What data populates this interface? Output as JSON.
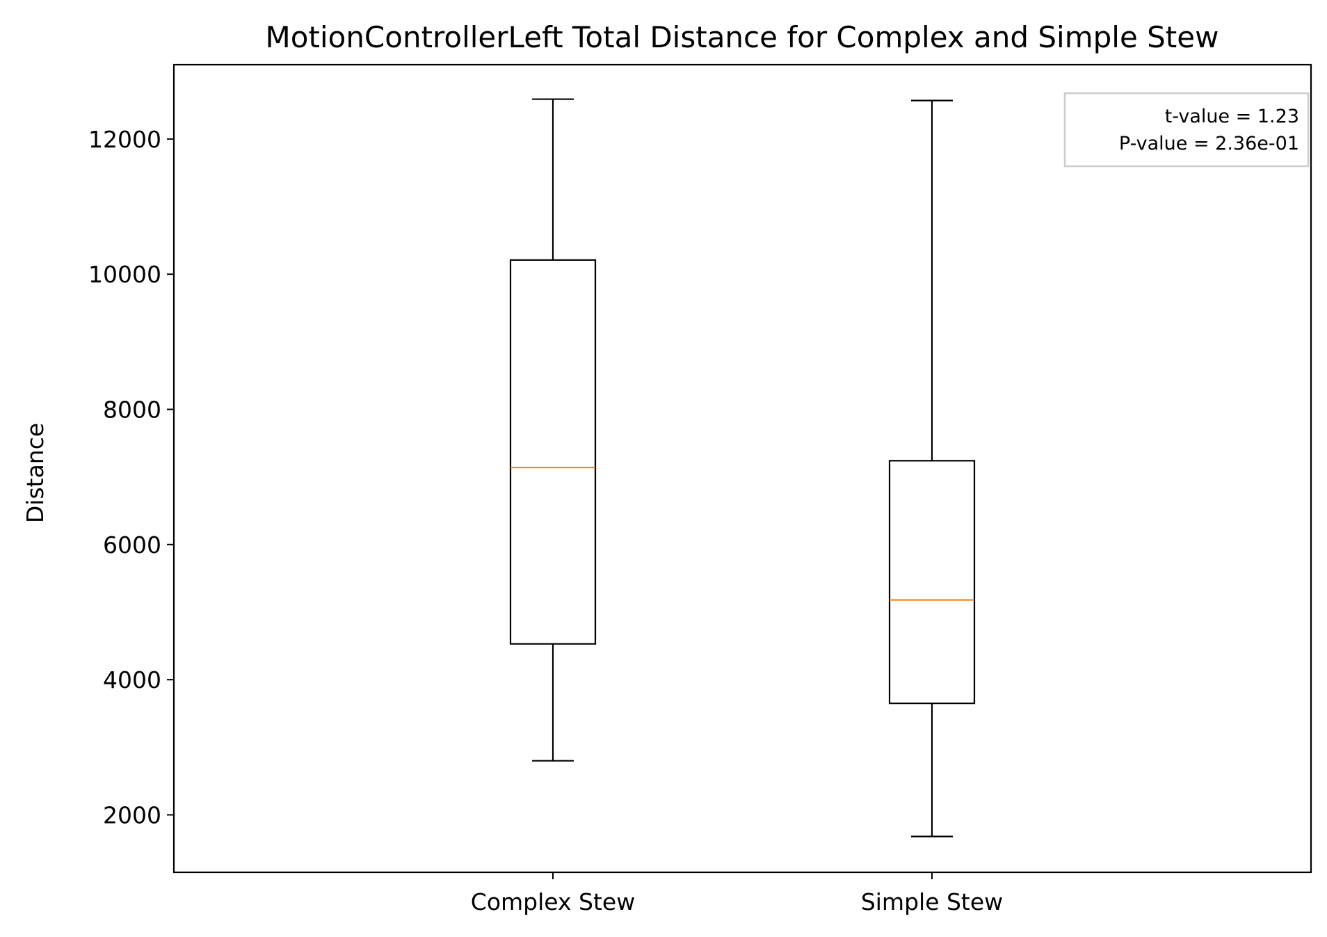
{
  "chart_data": {
    "type": "box",
    "title": "MotionControllerLeft Total Distance for Complex and Simple Stew",
    "xlabel": "",
    "ylabel": "Distance",
    "ylim": [
      1150,
      13100
    ],
    "yticks": [
      2000,
      4000,
      6000,
      8000,
      10000,
      12000
    ],
    "categories": [
      "Complex Stew",
      "Simple Stew"
    ],
    "boxes": [
      {
        "category": "Complex Stew",
        "whisker_low": 2800,
        "q1": 4530,
        "median": 7140,
        "q3": 10210,
        "whisker_high": 12590
      },
      {
        "category": "Simple Stew",
        "whisker_low": 1680,
        "q1": 3650,
        "median": 5180,
        "q3": 7240,
        "whisker_high": 12570
      }
    ],
    "annotation": {
      "lines": [
        "t-value = 1.23",
        "P-value = 2.36e-01"
      ],
      "placement": "top-right"
    },
    "colors": {
      "box": "#000000",
      "median": "#ff7f0e",
      "legend_border": "#cccccc"
    },
    "grid": false
  }
}
